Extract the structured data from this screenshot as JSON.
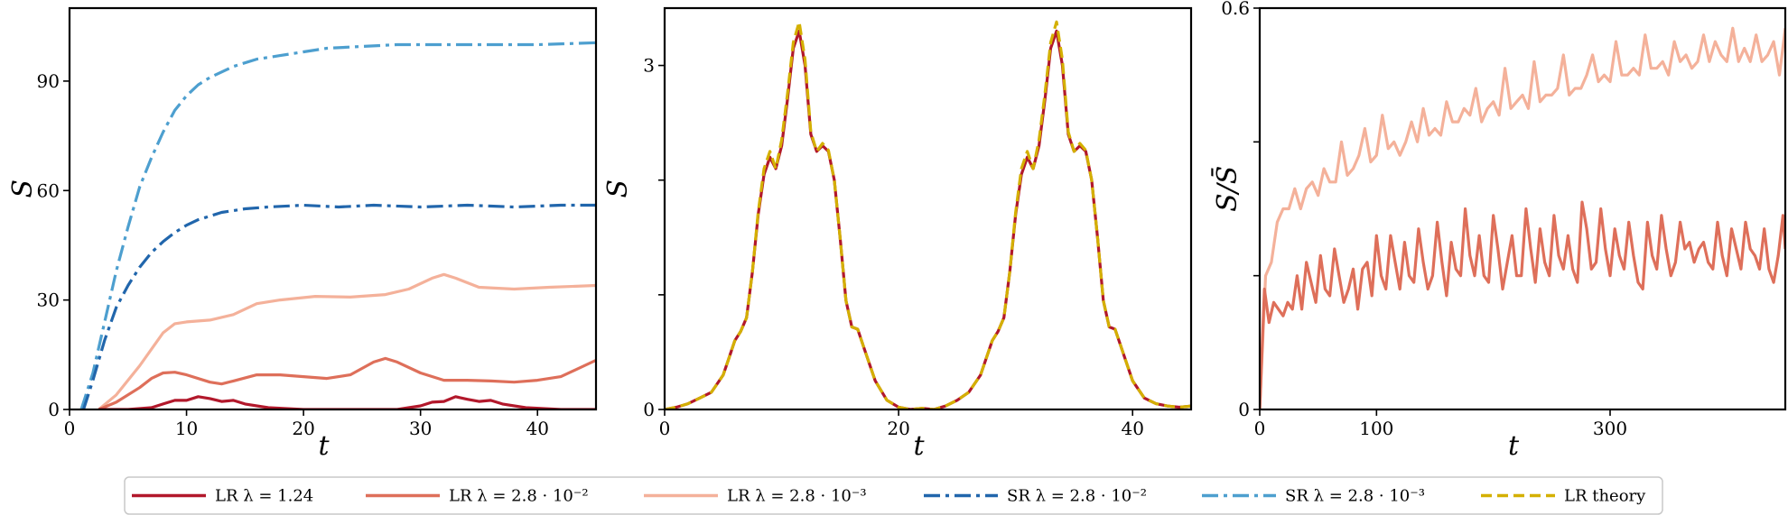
{
  "colors": {
    "lr_124": "#b2182b",
    "lr_28e2": "#de6f5a",
    "lr_28e3": "#f4b19a",
    "sr_28e2": "#2166ac",
    "sr_28e3": "#4d9fcf",
    "lr_theory": "#d4b000"
  },
  "legend": {
    "placement": "bottom",
    "entries": [
      {
        "label": "LR λ = 1.24",
        "color": "#b2182b",
        "style": "solid"
      },
      {
        "label": "LR λ = 2.8 · 10⁻²",
        "color": "#de6f5a",
        "style": "solid"
      },
      {
        "label": "LR λ = 2.8 · 10⁻³",
        "color": "#f4b19a",
        "style": "solid"
      },
      {
        "label": "SR λ = 2.8 · 10⁻²",
        "color": "#2166ac",
        "style": "dashdot"
      },
      {
        "label": "SR λ = 2.8 · 10⁻³",
        "color": "#4d9fcf",
        "style": "dashdot"
      },
      {
        "label": "LR theory",
        "color": "#d4b000",
        "style": "dashed"
      }
    ]
  },
  "chart_data": [
    {
      "type": "line",
      "xlabel": "t",
      "ylabel": "S",
      "xlim": [
        0,
        45
      ],
      "ylim": [
        0,
        110
      ],
      "xticks": [
        0,
        10,
        20,
        30,
        40
      ],
      "yticks": [
        0,
        30,
        60,
        90
      ],
      "series": [
        {
          "name": "SR λ = 2.8 · 10⁻³",
          "color": "#4d9fcf",
          "style": "dashdot",
          "x": [
            1,
            2,
            3,
            4,
            5,
            6,
            7,
            8,
            9,
            10,
            11,
            12,
            14,
            16,
            18,
            20,
            22,
            25,
            28,
            32,
            36,
            40,
            45
          ],
          "y": [
            0,
            10,
            24,
            38,
            50,
            61,
            69,
            76,
            82,
            86,
            89,
            91,
            94,
            96,
            97,
            98,
            99,
            99.5,
            100,
            100,
            100,
            100,
            100.5
          ]
        },
        {
          "name": "SR λ = 2.8 · 10⁻²",
          "color": "#2166ac",
          "style": "dashdot",
          "x": [
            1.2,
            2,
            3,
            4,
            5,
            6,
            7,
            8,
            9,
            10,
            11,
            12,
            13,
            14,
            15,
            17,
            20,
            23,
            26,
            30,
            34,
            38,
            42,
            45
          ],
          "y": [
            0,
            8,
            19,
            28,
            34,
            39,
            43,
            46,
            48.5,
            50.5,
            52,
            53,
            54,
            54.5,
            55,
            55.5,
            56,
            55.5,
            56,
            55.5,
            56,
            55.5,
            56,
            56
          ]
        },
        {
          "name": "LR λ = 2.8 · 10⁻³",
          "color": "#f4b19a",
          "style": "solid",
          "x": [
            2.5,
            4,
            6,
            8,
            9,
            10,
            12,
            14,
            16,
            18,
            21,
            24,
            27,
            29,
            31,
            32,
            33,
            35,
            38,
            41,
            45
          ],
          "y": [
            0,
            4,
            12,
            21,
            23.5,
            24,
            24.5,
            26,
            29,
            30,
            31,
            30.8,
            31.5,
            33,
            36,
            37,
            36,
            33.5,
            33,
            33.5,
            34
          ]
        },
        {
          "name": "LR λ = 2.8 · 10⁻²",
          "color": "#de6f5a",
          "style": "solid",
          "x": [
            2.5,
            4,
            6,
            7,
            8,
            9,
            10,
            12,
            13,
            14,
            16,
            18,
            20,
            22,
            24,
            26,
            27,
            28,
            30,
            32,
            34,
            36,
            38,
            40,
            42,
            45
          ],
          "y": [
            0,
            2,
            6,
            8.5,
            10,
            10.2,
            9.5,
            7.5,
            7,
            7.8,
            9.5,
            9.5,
            9,
            8.5,
            9.5,
            13,
            14,
            13,
            10,
            8,
            8,
            7.8,
            7.5,
            8,
            9,
            13.5
          ]
        },
        {
          "name": "LR λ = 1.24",
          "color": "#b2182b",
          "style": "solid",
          "x": [
            2.5,
            5,
            7,
            8,
            9,
            10,
            11,
            12,
            13,
            14,
            15,
            17,
            20,
            25,
            28,
            30,
            31,
            32,
            33,
            34,
            35,
            36,
            37,
            39,
            42,
            45
          ],
          "y": [
            0,
            0,
            0.5,
            1.5,
            2.5,
            2.5,
            3.5,
            3,
            2.2,
            2.5,
            1.5,
            0.5,
            0,
            0,
            0,
            1,
            2,
            2.2,
            3.5,
            2.8,
            2.2,
            2.5,
            1.5,
            0.5,
            0,
            0
          ]
        }
      ]
    },
    {
      "type": "line",
      "xlabel": "t",
      "ylabel": "S",
      "xlim": [
        0,
        45
      ],
      "ylim": [
        0,
        3.5
      ],
      "xticks": [
        0,
        20,
        40
      ],
      "yticks": [
        0,
        3
      ],
      "minor_yticks": [
        1,
        2
      ],
      "series": [
        {
          "name": "LR λ = 2.8 · 10⁻²",
          "color": "#b2182b",
          "style": "solid",
          "x": [
            0,
            1,
            2,
            3,
            4,
            5,
            5.5,
            6,
            6.5,
            7,
            7.5,
            8,
            8.5,
            9,
            9.5,
            10,
            10.5,
            11,
            11.5,
            12,
            12.5,
            13,
            13.5,
            14,
            14.5,
            15,
            15.5,
            16,
            16.5,
            17,
            18,
            19,
            20,
            21,
            22,
            23,
            24,
            25,
            26,
            27,
            27.5,
            28,
            28.5,
            29,
            29.5,
            30,
            30.5,
            31,
            31.5,
            32,
            32.5,
            33,
            33.5,
            34,
            34.5,
            35,
            35.5,
            36,
            36.5,
            37,
            37.5,
            38,
            38.5,
            39,
            40,
            41,
            42,
            43,
            44,
            45
          ],
          "y": [
            0,
            0.02,
            0.05,
            0.1,
            0.15,
            0.3,
            0.45,
            0.6,
            0.68,
            0.8,
            1.2,
            1.7,
            2.05,
            2.2,
            2.1,
            2.3,
            2.7,
            3.15,
            3.3,
            3.0,
            2.4,
            2.25,
            2.3,
            2.25,
            2.0,
            1.5,
            0.95,
            0.72,
            0.7,
            0.55,
            0.25,
            0.08,
            0.02,
            0,
            0.01,
            0,
            0.03,
            0.08,
            0.15,
            0.3,
            0.45,
            0.6,
            0.68,
            0.8,
            1.2,
            1.7,
            2.05,
            2.2,
            2.1,
            2.3,
            2.7,
            3.15,
            3.3,
            3.0,
            2.4,
            2.25,
            2.3,
            2.25,
            2.0,
            1.5,
            0.95,
            0.72,
            0.7,
            0.55,
            0.25,
            0.1,
            0.05,
            0.03,
            0.02,
            0.03
          ]
        },
        {
          "name": "LR theory",
          "color": "#d4b000",
          "style": "dashed",
          "x": [
            0,
            1,
            2,
            3,
            4,
            5,
            5.5,
            6,
            6.5,
            7,
            7.5,
            8,
            8.5,
            9,
            9.5,
            10,
            10.5,
            11,
            11.5,
            12,
            12.5,
            13,
            13.5,
            14,
            14.5,
            15,
            15.5,
            16,
            16.5,
            17,
            18,
            19,
            20,
            21,
            22,
            23,
            24,
            25,
            26,
            27,
            27.5,
            28,
            28.5,
            29,
            29.5,
            30,
            30.5,
            31,
            31.5,
            32,
            32.5,
            33,
            33.5,
            34,
            34.5,
            35,
            35.5,
            36,
            36.5,
            37,
            37.5,
            38,
            38.5,
            39,
            40,
            41,
            42,
            43,
            44,
            45
          ],
          "y": [
            0,
            0.02,
            0.05,
            0.1,
            0.15,
            0.3,
            0.45,
            0.6,
            0.68,
            0.8,
            1.2,
            1.72,
            2.1,
            2.25,
            2.1,
            2.35,
            2.75,
            3.2,
            3.38,
            3.05,
            2.42,
            2.25,
            2.32,
            2.26,
            2.0,
            1.5,
            0.95,
            0.72,
            0.7,
            0.55,
            0.25,
            0.08,
            0.02,
            0,
            0.01,
            0,
            0.03,
            0.08,
            0.15,
            0.3,
            0.45,
            0.6,
            0.68,
            0.8,
            1.2,
            1.72,
            2.1,
            2.25,
            2.1,
            2.35,
            2.75,
            3.2,
            3.38,
            3.05,
            2.42,
            2.25,
            2.32,
            2.26,
            2.0,
            1.5,
            0.95,
            0.72,
            0.7,
            0.55,
            0.25,
            0.1,
            0.05,
            0.03,
            0.02,
            0.03
          ]
        }
      ]
    },
    {
      "type": "line",
      "xlabel": "t",
      "ylabel": "S/S̄",
      "xlim": [
        0,
        450
      ],
      "ylim": [
        0,
        0.6
      ],
      "xticks": [
        0,
        100,
        300
      ],
      "yticks": [
        0,
        0.6
      ],
      "minor_yticks": [
        0.2,
        0.4
      ],
      "series": [
        {
          "name": "LR λ = 2.8 · 10⁻³",
          "color": "#f4b19a",
          "style": "solid",
          "x": [
            0,
            5,
            10,
            15,
            20,
            25,
            30,
            35,
            40,
            45,
            50,
            55,
            60,
            65,
            70,
            75,
            80,
            85,
            90,
            95,
            100,
            105,
            110,
            115,
            120,
            125,
            130,
            135,
            140,
            145,
            150,
            155,
            160,
            165,
            170,
            175,
            180,
            185,
            190,
            195,
            200,
            205,
            210,
            215,
            220,
            225,
            230,
            235,
            240,
            245,
            250,
            255,
            260,
            265,
            270,
            275,
            280,
            285,
            290,
            295,
            300,
            305,
            310,
            315,
            320,
            325,
            330,
            335,
            340,
            345,
            350,
            355,
            360,
            365,
            370,
            375,
            380,
            385,
            390,
            395,
            400,
            405,
            410,
            415,
            420,
            425,
            430,
            435,
            440,
            445,
            450
          ],
          "y": [
            0,
            0.2,
            0.22,
            0.28,
            0.3,
            0.3,
            0.33,
            0.3,
            0.33,
            0.34,
            0.32,
            0.36,
            0.34,
            0.34,
            0.4,
            0.35,
            0.36,
            0.38,
            0.42,
            0.37,
            0.38,
            0.44,
            0.39,
            0.4,
            0.38,
            0.4,
            0.43,
            0.4,
            0.45,
            0.41,
            0.42,
            0.41,
            0.46,
            0.43,
            0.43,
            0.45,
            0.44,
            0.48,
            0.43,
            0.45,
            0.46,
            0.44,
            0.51,
            0.45,
            0.46,
            0.47,
            0.45,
            0.52,
            0.46,
            0.47,
            0.47,
            0.48,
            0.53,
            0.47,
            0.48,
            0.48,
            0.5,
            0.53,
            0.49,
            0.5,
            0.49,
            0.55,
            0.5,
            0.5,
            0.51,
            0.5,
            0.56,
            0.51,
            0.51,
            0.52,
            0.5,
            0.55,
            0.52,
            0.53,
            0.51,
            0.52,
            0.56,
            0.52,
            0.55,
            0.53,
            0.52,
            0.57,
            0.52,
            0.54,
            0.52,
            0.56,
            0.52,
            0.53,
            0.55,
            0.5,
            0.57
          ]
        },
        {
          "name": "LR λ = 2.8 · 10⁻²",
          "color": "#de6f5a",
          "style": "solid",
          "x": [
            0,
            4,
            8,
            12,
            16,
            20,
            24,
            28,
            32,
            36,
            40,
            44,
            48,
            52,
            56,
            60,
            64,
            68,
            72,
            76,
            80,
            84,
            88,
            92,
            96,
            100,
            104,
            108,
            112,
            116,
            120,
            124,
            128,
            132,
            136,
            140,
            144,
            148,
            152,
            156,
            160,
            164,
            168,
            172,
            176,
            180,
            184,
            188,
            192,
            196,
            200,
            204,
            208,
            212,
            216,
            220,
            224,
            228,
            232,
            236,
            240,
            244,
            248,
            252,
            256,
            260,
            264,
            268,
            272,
            276,
            280,
            284,
            288,
            292,
            296,
            300,
            304,
            308,
            312,
            316,
            320,
            324,
            328,
            332,
            336,
            340,
            344,
            348,
            352,
            356,
            360,
            364,
            368,
            372,
            376,
            380,
            384,
            388,
            392,
            396,
            400,
            404,
            408,
            412,
            416,
            420,
            424,
            428,
            432,
            436,
            440,
            444,
            448,
            450
          ],
          "y": [
            0,
            0.18,
            0.13,
            0.16,
            0.15,
            0.14,
            0.16,
            0.15,
            0.2,
            0.15,
            0.22,
            0.19,
            0.16,
            0.23,
            0.18,
            0.17,
            0.24,
            0.2,
            0.16,
            0.18,
            0.21,
            0.15,
            0.21,
            0.22,
            0.17,
            0.26,
            0.2,
            0.18,
            0.26,
            0.22,
            0.18,
            0.25,
            0.2,
            0.19,
            0.27,
            0.22,
            0.18,
            0.2,
            0.28,
            0.22,
            0.17,
            0.25,
            0.21,
            0.2,
            0.3,
            0.23,
            0.2,
            0.26,
            0.2,
            0.19,
            0.29,
            0.24,
            0.18,
            0.22,
            0.26,
            0.2,
            0.2,
            0.3,
            0.24,
            0.19,
            0.27,
            0.22,
            0.2,
            0.29,
            0.23,
            0.21,
            0.26,
            0.21,
            0.19,
            0.31,
            0.27,
            0.21,
            0.22,
            0.3,
            0.24,
            0.2,
            0.27,
            0.23,
            0.21,
            0.28,
            0.23,
            0.19,
            0.18,
            0.28,
            0.23,
            0.21,
            0.29,
            0.24,
            0.2,
            0.22,
            0.28,
            0.24,
            0.25,
            0.22,
            0.24,
            0.25,
            0.22,
            0.21,
            0.28,
            0.23,
            0.2,
            0.27,
            0.24,
            0.21,
            0.28,
            0.24,
            0.23,
            0.21,
            0.27,
            0.21,
            0.19,
            0.23,
            0.29,
            0.24
          ]
        }
      ]
    }
  ]
}
